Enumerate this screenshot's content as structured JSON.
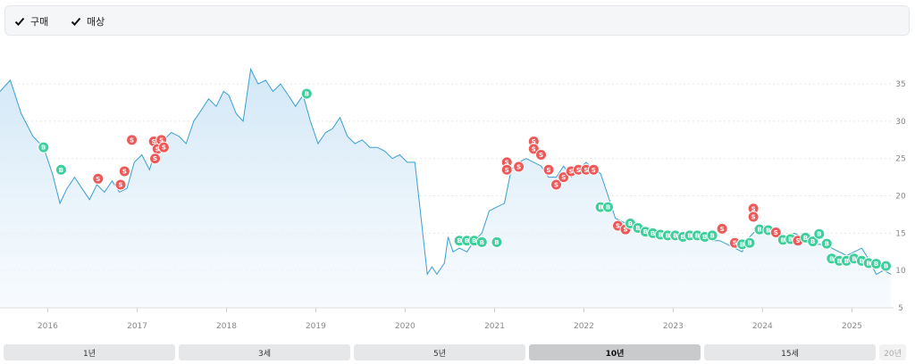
{
  "legend": {
    "buy": {
      "label": "구매",
      "checked": true
    },
    "sell": {
      "label": "매상",
      "checked": true
    }
  },
  "colors": {
    "line": "#3a9fd0",
    "buy": "#3fcf9d",
    "sell": "#ee5a5a",
    "grid": "#e8e8e8",
    "axis_text": "#888888"
  },
  "range_tabs": [
    {
      "label": "1년",
      "active": false,
      "disabled": false
    },
    {
      "label": "3세",
      "active": false,
      "disabled": false
    },
    {
      "label": "5년",
      "active": false,
      "disabled": false
    },
    {
      "label": "10년",
      "active": true,
      "disabled": false
    },
    {
      "label": "15세",
      "active": false,
      "disabled": false
    },
    {
      "label": "20년",
      "active": false,
      "disabled": true
    }
  ],
  "chart_data": {
    "type": "line",
    "x_type": "date",
    "x_ticks": [
      "2016",
      "2017",
      "2018",
      "2019",
      "2020",
      "2021",
      "2022",
      "2023",
      "2024",
      "2025"
    ],
    "y_ticks": [
      5,
      10,
      15,
      20,
      25,
      30,
      35
    ],
    "ylim": [
      5,
      38
    ],
    "xlim": [
      "2015-06-20",
      "2025-06-20"
    ],
    "grid": "horizontal",
    "area_fill": true,
    "series": [
      {
        "points": [
          [
            "2015-06-20",
            34.0
          ],
          [
            "2015-08-01",
            35.5
          ],
          [
            "2015-09-15",
            31.0
          ],
          [
            "2015-11-01",
            28.0
          ],
          [
            "2015-12-15",
            26.5
          ],
          [
            "2016-01-20",
            23.0
          ],
          [
            "2016-02-20",
            19.0
          ],
          [
            "2016-03-20",
            21.0
          ],
          [
            "2016-04-20",
            22.5
          ],
          [
            "2016-05-20",
            21.0
          ],
          [
            "2016-06-20",
            19.5
          ],
          [
            "2016-07-20",
            21.5
          ],
          [
            "2016-08-20",
            20.5
          ],
          [
            "2016-09-20",
            22.0
          ],
          [
            "2016-10-20",
            20.5
          ],
          [
            "2016-11-20",
            21.0
          ],
          [
            "2016-12-20",
            24.5
          ],
          [
            "2017-01-20",
            25.5
          ],
          [
            "2017-02-20",
            23.5
          ],
          [
            "2017-03-20",
            26.5
          ],
          [
            "2017-04-20",
            27.5
          ],
          [
            "2017-05-20",
            28.5
          ],
          [
            "2017-06-20",
            28.0
          ],
          [
            "2017-07-20",
            27.0
          ],
          [
            "2017-08-20",
            30.0
          ],
          [
            "2017-09-20",
            31.5
          ],
          [
            "2017-10-20",
            33.0
          ],
          [
            "2017-11-20",
            32.0
          ],
          [
            "2017-12-20",
            34.0
          ],
          [
            "2018-01-10",
            33.5
          ],
          [
            "2018-02-10",
            31.0
          ],
          [
            "2018-03-10",
            30.0
          ],
          [
            "2018-04-10",
            37.0
          ],
          [
            "2018-05-10",
            35.0
          ],
          [
            "2018-06-10",
            35.5
          ],
          [
            "2018-07-10",
            34.0
          ],
          [
            "2018-08-10",
            35.0
          ],
          [
            "2018-09-10",
            33.5
          ],
          [
            "2018-10-10",
            32.0
          ],
          [
            "2018-11-10",
            33.5
          ],
          [
            "2018-12-10",
            30.0
          ],
          [
            "2019-01-10",
            27.0
          ],
          [
            "2019-02-10",
            28.5
          ],
          [
            "2019-03-10",
            29.0
          ],
          [
            "2019-04-10",
            30.5
          ],
          [
            "2019-05-10",
            28.0
          ],
          [
            "2019-06-10",
            27.0
          ],
          [
            "2019-07-10",
            27.5
          ],
          [
            "2019-08-10",
            26.5
          ],
          [
            "2019-09-10",
            26.5
          ],
          [
            "2019-10-10",
            26.0
          ],
          [
            "2019-11-10",
            25.0
          ],
          [
            "2019-12-10",
            25.5
          ],
          [
            "2020-01-10",
            24.5
          ],
          [
            "2020-02-10",
            24.5
          ],
          [
            "2020-03-10",
            16.0
          ],
          [
            "2020-04-01",
            9.5
          ],
          [
            "2020-04-20",
            10.5
          ],
          [
            "2020-05-10",
            9.5
          ],
          [
            "2020-06-10",
            11.0
          ],
          [
            "2020-06-25",
            14.5
          ],
          [
            "2020-07-15",
            12.5
          ],
          [
            "2020-08-10",
            13.0
          ],
          [
            "2020-09-10",
            12.5
          ],
          [
            "2020-10-10",
            14.0
          ],
          [
            "2020-11-10",
            15.0
          ],
          [
            "2020-12-10",
            18.0
          ],
          [
            "2021-01-10",
            18.5
          ],
          [
            "2021-02-10",
            19.0
          ],
          [
            "2021-03-10",
            23.5
          ],
          [
            "2021-04-10",
            24.5
          ],
          [
            "2021-05-10",
            25.0
          ],
          [
            "2021-06-10",
            24.5
          ],
          [
            "2021-07-10",
            24.0
          ],
          [
            "2021-08-10",
            22.5
          ],
          [
            "2021-09-10",
            22.5
          ],
          [
            "2021-10-10",
            24.0
          ],
          [
            "2021-11-10",
            22.5
          ],
          [
            "2021-12-10",
            23.5
          ],
          [
            "2022-01-10",
            24.5
          ],
          [
            "2022-02-10",
            23.5
          ],
          [
            "2022-03-10",
            23.0
          ],
          [
            "2022-04-10",
            20.0
          ],
          [
            "2022-05-10",
            17.0
          ],
          [
            "2022-06-10",
            16.5
          ],
          [
            "2022-07-10",
            16.0
          ],
          [
            "2022-08-10",
            15.5
          ],
          [
            "2022-09-10",
            15.5
          ],
          [
            "2022-10-10",
            15.0
          ],
          [
            "2022-11-10",
            15.0
          ],
          [
            "2022-12-10",
            14.5
          ],
          [
            "2023-01-10",
            15.0
          ],
          [
            "2023-02-10",
            14.5
          ],
          [
            "2023-03-10",
            14.5
          ],
          [
            "2023-04-10",
            14.0
          ],
          [
            "2023-05-10",
            14.5
          ],
          [
            "2023-06-10",
            14.0
          ],
          [
            "2023-07-10",
            14.0
          ],
          [
            "2023-08-10",
            13.5
          ],
          [
            "2023-09-10",
            13.0
          ],
          [
            "2023-10-10",
            12.5
          ],
          [
            "2023-11-10",
            14.5
          ],
          [
            "2023-12-10",
            15.5
          ],
          [
            "2024-01-10",
            16.0
          ],
          [
            "2024-02-10",
            15.5
          ],
          [
            "2024-03-10",
            15.0
          ],
          [
            "2024-04-10",
            14.5
          ],
          [
            "2024-05-10",
            15.0
          ],
          [
            "2024-06-10",
            14.5
          ],
          [
            "2024-07-10",
            14.0
          ],
          [
            "2024-08-10",
            13.5
          ],
          [
            "2024-09-10",
            13.5
          ],
          [
            "2024-10-10",
            13.0
          ],
          [
            "2024-11-10",
            12.5
          ],
          [
            "2024-12-10",
            12.0
          ],
          [
            "2025-01-10",
            12.5
          ],
          [
            "2025-02-10",
            13.0
          ],
          [
            "2025-03-10",
            11.5
          ],
          [
            "2025-04-10",
            9.5
          ],
          [
            "2025-05-10",
            10.0
          ],
          [
            "2025-06-10",
            9.5
          ]
        ]
      }
    ],
    "markers": [
      {
        "date": "2015-12-15",
        "price": 26.5,
        "type": "buy"
      },
      {
        "date": "2016-02-25",
        "price": 23.5,
        "type": "buy"
      },
      {
        "date": "2016-07-25",
        "price": 22.3,
        "type": "sell"
      },
      {
        "date": "2016-10-25",
        "price": 21.5,
        "type": "sell"
      },
      {
        "date": "2016-11-10",
        "price": 23.3,
        "type": "sell"
      },
      {
        "date": "2016-12-10",
        "price": 27.5,
        "type": "sell"
      },
      {
        "date": "2017-03-10",
        "price": 27.3,
        "type": "sell"
      },
      {
        "date": "2017-03-25",
        "price": 26.3,
        "type": "sell"
      },
      {
        "date": "2017-04-10",
        "price": 27.5,
        "type": "sell"
      },
      {
        "date": "2017-04-20",
        "price": 26.5,
        "type": "sell"
      },
      {
        "date": "2017-03-15",
        "price": 25.0,
        "type": "sell"
      },
      {
        "date": "2018-11-25",
        "price": 33.7,
        "type": "buy"
      },
      {
        "date": "2020-08-10",
        "price": 14.0,
        "type": "buy"
      },
      {
        "date": "2020-09-10",
        "price": 14.0,
        "type": "buy"
      },
      {
        "date": "2020-10-10",
        "price": 14.0,
        "type": "buy"
      },
      {
        "date": "2020-11-10",
        "price": 13.8,
        "type": "buy"
      },
      {
        "date": "2021-01-10",
        "price": 13.8,
        "type": "buy"
      },
      {
        "date": "2021-02-20",
        "price": 24.5,
        "type": "sell"
      },
      {
        "date": "2021-02-20",
        "price": 23.5,
        "type": "sell"
      },
      {
        "date": "2021-04-10",
        "price": 23.9,
        "type": "sell"
      },
      {
        "date": "2021-06-10",
        "price": 27.3,
        "type": "sell"
      },
      {
        "date": "2021-06-10",
        "price": 26.3,
        "type": "sell"
      },
      {
        "date": "2021-07-10",
        "price": 25.5,
        "type": "sell"
      },
      {
        "date": "2021-08-10",
        "price": 23.5,
        "type": "sell"
      },
      {
        "date": "2021-09-10",
        "price": 21.5,
        "type": "sell"
      },
      {
        "date": "2021-10-10",
        "price": 22.5,
        "type": "sell"
      },
      {
        "date": "2021-11-10",
        "price": 23.3,
        "type": "sell"
      },
      {
        "date": "2021-12-10",
        "price": 23.5,
        "type": "sell"
      },
      {
        "date": "2022-01-10",
        "price": 23.5,
        "type": "sell"
      },
      {
        "date": "2022-02-10",
        "price": 23.5,
        "type": "sell"
      },
      {
        "date": "2022-03-10",
        "price": 18.5,
        "type": "buy"
      },
      {
        "date": "2022-04-10",
        "price": 18.5,
        "type": "buy"
      },
      {
        "date": "2022-05-20",
        "price": 16.0,
        "type": "sell"
      },
      {
        "date": "2022-06-20",
        "price": 15.5,
        "type": "sell"
      },
      {
        "date": "2022-07-10",
        "price": 16.3,
        "type": "buy"
      },
      {
        "date": "2022-08-10",
        "price": 15.7,
        "type": "buy"
      },
      {
        "date": "2022-09-10",
        "price": 15.2,
        "type": "buy"
      },
      {
        "date": "2022-10-10",
        "price": 15.0,
        "type": "buy"
      },
      {
        "date": "2022-11-10",
        "price": 14.8,
        "type": "buy"
      },
      {
        "date": "2022-12-10",
        "price": 14.7,
        "type": "buy"
      },
      {
        "date": "2023-01-10",
        "price": 14.7,
        "type": "buy"
      },
      {
        "date": "2023-02-10",
        "price": 14.5,
        "type": "buy"
      },
      {
        "date": "2023-03-10",
        "price": 14.7,
        "type": "buy"
      },
      {
        "date": "2023-04-10",
        "price": 14.7,
        "type": "buy"
      },
      {
        "date": "2023-05-10",
        "price": 14.5,
        "type": "buy"
      },
      {
        "date": "2023-06-10",
        "price": 14.7,
        "type": "buy"
      },
      {
        "date": "2023-07-20",
        "price": 15.6,
        "type": "sell"
      },
      {
        "date": "2023-09-10",
        "price": 13.7,
        "type": "sell"
      },
      {
        "date": "2023-10-10",
        "price": 13.5,
        "type": "buy"
      },
      {
        "date": "2023-11-10",
        "price": 13.7,
        "type": "buy"
      },
      {
        "date": "2023-11-25",
        "price": 18.3,
        "type": "sell"
      },
      {
        "date": "2023-11-25",
        "price": 17.2,
        "type": "sell"
      },
      {
        "date": "2023-12-20",
        "price": 15.5,
        "type": "buy"
      },
      {
        "date": "2024-01-25",
        "price": 15.4,
        "type": "buy"
      },
      {
        "date": "2024-02-25",
        "price": 15.1,
        "type": "sell"
      },
      {
        "date": "2024-03-25",
        "price": 14.1,
        "type": "buy"
      },
      {
        "date": "2024-04-25",
        "price": 14.2,
        "type": "buy"
      },
      {
        "date": "2024-05-25",
        "price": 14.0,
        "type": "sell"
      },
      {
        "date": "2024-06-25",
        "price": 14.4,
        "type": "buy"
      },
      {
        "date": "2024-07-25",
        "price": 13.9,
        "type": "buy"
      },
      {
        "date": "2024-08-20",
        "price": 14.9,
        "type": "buy"
      },
      {
        "date": "2024-09-20",
        "price": 13.6,
        "type": "buy"
      },
      {
        "date": "2024-10-10",
        "price": 11.6,
        "type": "buy"
      },
      {
        "date": "2024-11-10",
        "price": 11.3,
        "type": "buy"
      },
      {
        "date": "2024-12-10",
        "price": 11.3,
        "type": "buy"
      },
      {
        "date": "2025-01-10",
        "price": 11.6,
        "type": "buy"
      },
      {
        "date": "2025-02-10",
        "price": 11.3,
        "type": "buy"
      },
      {
        "date": "2025-03-10",
        "price": 11.0,
        "type": "buy"
      },
      {
        "date": "2025-04-10",
        "price": 10.9,
        "type": "buy"
      },
      {
        "date": "2025-05-20",
        "price": 10.6,
        "type": "buy"
      }
    ]
  }
}
